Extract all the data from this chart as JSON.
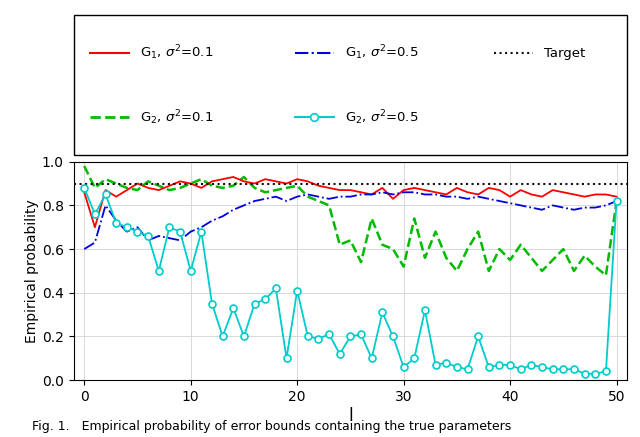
{
  "xlabel": "l",
  "ylabel": "Empirical probability",
  "xlim": [
    -1,
    51
  ],
  "ylim": [
    0,
    1.0
  ],
  "target_level": 0.9,
  "colors": {
    "G1_low": "#ff0000",
    "G1_high": "#0000dd",
    "G2_low": "#00bb00",
    "G2_high": "#00cccc",
    "target": "#111111"
  },
  "caption": "Fig. 1.   Empirical probability of error bounds containing the true parameters",
  "G1_low": [
    0.86,
    0.7,
    0.87,
    0.84,
    0.87,
    0.9,
    0.88,
    0.87,
    0.89,
    0.91,
    0.9,
    0.88,
    0.91,
    0.92,
    0.93,
    0.91,
    0.9,
    0.92,
    0.91,
    0.9,
    0.92,
    0.91,
    0.89,
    0.88,
    0.87,
    0.87,
    0.86,
    0.85,
    0.88,
    0.83,
    0.87,
    0.88,
    0.87,
    0.86,
    0.85,
    0.88,
    0.86,
    0.85,
    0.88,
    0.87,
    0.84,
    0.87,
    0.85,
    0.84,
    0.87,
    0.86,
    0.85,
    0.84,
    0.85,
    0.85,
    0.84
  ],
  "G1_high": [
    0.6,
    0.63,
    0.8,
    0.73,
    0.68,
    0.7,
    0.64,
    0.66,
    0.65,
    0.64,
    0.68,
    0.7,
    0.73,
    0.75,
    0.78,
    0.8,
    0.82,
    0.83,
    0.84,
    0.82,
    0.84,
    0.85,
    0.84,
    0.83,
    0.84,
    0.84,
    0.85,
    0.85,
    0.86,
    0.85,
    0.86,
    0.86,
    0.85,
    0.85,
    0.84,
    0.84,
    0.83,
    0.84,
    0.83,
    0.82,
    0.81,
    0.8,
    0.79,
    0.78,
    0.8,
    0.79,
    0.78,
    0.79,
    0.79,
    0.8,
    0.82
  ],
  "G2_low": [
    0.98,
    0.88,
    0.92,
    0.9,
    0.88,
    0.87,
    0.91,
    0.89,
    0.87,
    0.88,
    0.9,
    0.92,
    0.89,
    0.88,
    0.89,
    0.93,
    0.88,
    0.86,
    0.87,
    0.88,
    0.89,
    0.84,
    0.82,
    0.8,
    0.62,
    0.64,
    0.54,
    0.74,
    0.62,
    0.6,
    0.52,
    0.74,
    0.56,
    0.68,
    0.56,
    0.5,
    0.6,
    0.68,
    0.5,
    0.6,
    0.55,
    0.62,
    0.56,
    0.5,
    0.55,
    0.6,
    0.5,
    0.57,
    0.52,
    0.48,
    0.82
  ],
  "G2_high": [
    0.88,
    0.76,
    0.85,
    0.72,
    0.7,
    0.68,
    0.66,
    0.5,
    0.7,
    0.68,
    0.5,
    0.68,
    0.35,
    0.2,
    0.33,
    0.2,
    0.35,
    0.37,
    0.42,
    0.1,
    0.41,
    0.2,
    0.19,
    0.21,
    0.12,
    0.2,
    0.21,
    0.1,
    0.31,
    0.2,
    0.06,
    0.1,
    0.32,
    0.07,
    0.08,
    0.06,
    0.05,
    0.2,
    0.06,
    0.07,
    0.07,
    0.05,
    0.07,
    0.06,
    0.05,
    0.05,
    0.05,
    0.03,
    0.03,
    0.04,
    0.82
  ]
}
